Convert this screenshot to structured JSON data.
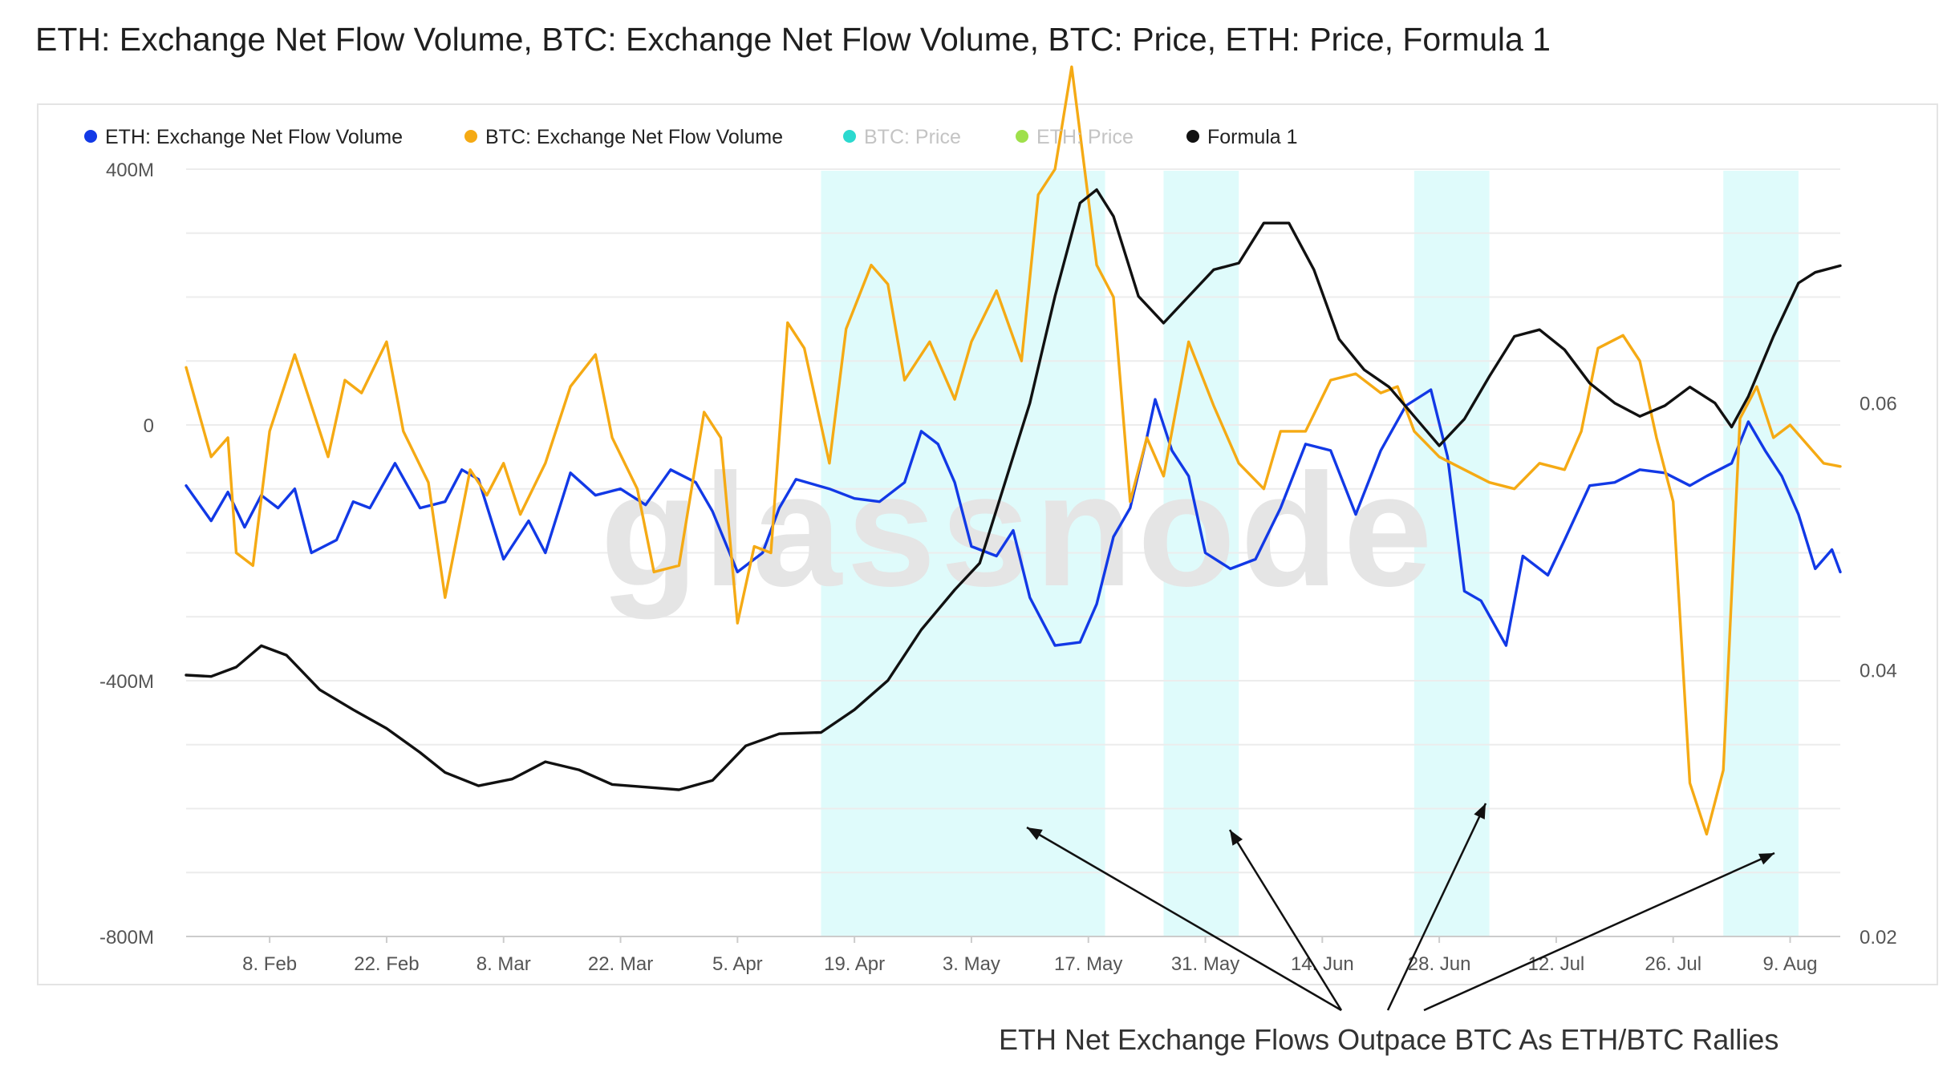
{
  "title": "ETH: Exchange Net Flow Volume, BTC: Exchange Net Flow Volume, BTC: Price, ETH: Price, Formula 1",
  "annotation": "ETH Net Exchange Flows Outpace BTC As ETH/BTC Rallies",
  "watermark": "glassnode",
  "chart_data": {
    "type": "line",
    "x_ticks": [
      "8. Feb",
      "22. Feb",
      "8. Mar",
      "22. Mar",
      "5. Apr",
      "19. Apr",
      "3. May",
      "17. May",
      "31. May",
      "14. Jun",
      "28. Jun",
      "12. Jul",
      "26. Jul",
      "9. Aug"
    ],
    "x_range": [
      "2021-01-29",
      "2021-08-15"
    ],
    "y_left": {
      "ticks": [
        "400M",
        "0",
        "-400M",
        "-800M"
      ],
      "range": [
        -800000000,
        420000000
      ]
    },
    "y_right": {
      "ticks": [
        "0.06",
        "0.04",
        "0.02"
      ],
      "range": [
        0.02,
        0.0785
      ]
    },
    "grid": true,
    "legend_position": "top-left",
    "legend": [
      {
        "label": "ETH: Exchange Net Flow Volume",
        "color": "#1239e6",
        "muted": false
      },
      {
        "label": "BTC: Exchange Net Flow Volume",
        "color": "#f5aa14",
        "muted": false
      },
      {
        "label": "BTC: Price",
        "color": "#2bd9cf",
        "muted": true
      },
      {
        "label": "ETH: Price",
        "color": "#9fe04b",
        "muted": true
      },
      {
        "label": "Formula 1",
        "color": "#111111",
        "muted": false
      }
    ],
    "highlight_bands": [
      {
        "from": "2021-04-15",
        "to": "2021-05-19"
      },
      {
        "from": "2021-05-26",
        "to": "2021-06-04"
      },
      {
        "from": "2021-06-25",
        "to": "2021-07-04"
      },
      {
        "from": "2021-08-01",
        "to": "2021-08-10"
      }
    ],
    "series": [
      {
        "name": "ETH: Exchange Net Flow Volume",
        "axis": "left",
        "color": "#1239e6",
        "points": [
          [
            "2021-01-29",
            -95000000
          ],
          [
            "2021-02-01",
            -150000000
          ],
          [
            "2021-02-03",
            -105000000
          ],
          [
            "2021-02-05",
            -160000000
          ],
          [
            "2021-02-07",
            -110000000
          ],
          [
            "2021-02-09",
            -130000000
          ],
          [
            "2021-02-11",
            -100000000
          ],
          [
            "2021-02-13",
            -200000000
          ],
          [
            "2021-02-16",
            -180000000
          ],
          [
            "2021-02-18",
            -120000000
          ],
          [
            "2021-02-20",
            -130000000
          ],
          [
            "2021-02-23",
            -60000000
          ],
          [
            "2021-02-26",
            -130000000
          ],
          [
            "2021-03-01",
            -120000000
          ],
          [
            "2021-03-03",
            -70000000
          ],
          [
            "2021-03-05",
            -85000000
          ],
          [
            "2021-03-08",
            -210000000
          ],
          [
            "2021-03-11",
            -150000000
          ],
          [
            "2021-03-13",
            -200000000
          ],
          [
            "2021-03-16",
            -75000000
          ],
          [
            "2021-03-19",
            -110000000
          ],
          [
            "2021-03-22",
            -100000000
          ],
          [
            "2021-03-25",
            -125000000
          ],
          [
            "2021-03-28",
            -70000000
          ],
          [
            "2021-03-31",
            -90000000
          ],
          [
            "2021-04-02",
            -135000000
          ],
          [
            "2021-04-05",
            -230000000
          ],
          [
            "2021-04-08",
            -200000000
          ],
          [
            "2021-04-10",
            -130000000
          ],
          [
            "2021-04-12",
            -85000000
          ],
          [
            "2021-04-16",
            -100000000
          ],
          [
            "2021-04-19",
            -115000000
          ],
          [
            "2021-04-22",
            -120000000
          ],
          [
            "2021-04-25",
            -90000000
          ],
          [
            "2021-04-27",
            -10000000
          ],
          [
            "2021-04-29",
            -30000000
          ],
          [
            "2021-05-01",
            -90000000
          ],
          [
            "2021-05-03",
            -190000000
          ],
          [
            "2021-05-06",
            -205000000
          ],
          [
            "2021-05-08",
            -165000000
          ],
          [
            "2021-05-10",
            -270000000
          ],
          [
            "2021-05-13",
            -345000000
          ],
          [
            "2021-05-16",
            -340000000
          ],
          [
            "2021-05-18",
            -280000000
          ],
          [
            "2021-05-20",
            -175000000
          ],
          [
            "2021-05-22",
            -130000000
          ],
          [
            "2021-05-24",
            -20000000
          ],
          [
            "2021-05-25",
            40000000
          ],
          [
            "2021-05-27",
            -40000000
          ],
          [
            "2021-05-29",
            -80000000
          ],
          [
            "2021-05-31",
            -200000000
          ],
          [
            "2021-06-03",
            -225000000
          ],
          [
            "2021-06-06",
            -210000000
          ],
          [
            "2021-06-09",
            -130000000
          ],
          [
            "2021-06-12",
            -30000000
          ],
          [
            "2021-06-15",
            -40000000
          ],
          [
            "2021-06-18",
            -140000000
          ],
          [
            "2021-06-21",
            -40000000
          ],
          [
            "2021-06-24",
            30000000
          ],
          [
            "2021-06-27",
            55000000
          ],
          [
            "2021-06-29",
            -50000000
          ],
          [
            "2021-07-01",
            -260000000
          ],
          [
            "2021-07-03",
            -275000000
          ],
          [
            "2021-07-06",
            -345000000
          ],
          [
            "2021-07-08",
            -205000000
          ],
          [
            "2021-07-11",
            -235000000
          ],
          [
            "2021-07-13",
            -180000000
          ],
          [
            "2021-07-16",
            -95000000
          ],
          [
            "2021-07-19",
            -90000000
          ],
          [
            "2021-07-22",
            -70000000
          ],
          [
            "2021-07-25",
            -75000000
          ],
          [
            "2021-07-28",
            -95000000
          ],
          [
            "2021-07-30",
            -80000000
          ],
          [
            "2021-08-02",
            -60000000
          ],
          [
            "2021-08-04",
            5000000
          ],
          [
            "2021-08-06",
            -40000000
          ],
          [
            "2021-08-08",
            -80000000
          ],
          [
            "2021-08-10",
            -140000000
          ],
          [
            "2021-08-12",
            -225000000
          ],
          [
            "2021-08-14",
            -195000000
          ],
          [
            "2021-08-15",
            -230000000
          ]
        ]
      },
      {
        "name": "BTC: Exchange Net Flow Volume",
        "axis": "left",
        "color": "#f5aa14",
        "points": [
          [
            "2021-01-29",
            90000000
          ],
          [
            "2021-02-01",
            -50000000
          ],
          [
            "2021-02-03",
            -20000000
          ],
          [
            "2021-02-04",
            -200000000
          ],
          [
            "2021-02-06",
            -220000000
          ],
          [
            "2021-02-08",
            -10000000
          ],
          [
            "2021-02-11",
            110000000
          ],
          [
            "2021-02-13",
            30000000
          ],
          [
            "2021-02-15",
            -50000000
          ],
          [
            "2021-02-17",
            70000000
          ],
          [
            "2021-02-19",
            50000000
          ],
          [
            "2021-02-22",
            130000000
          ],
          [
            "2021-02-24",
            -10000000
          ],
          [
            "2021-02-27",
            -90000000
          ],
          [
            "2021-03-01",
            -270000000
          ],
          [
            "2021-03-04",
            -70000000
          ],
          [
            "2021-03-06",
            -110000000
          ],
          [
            "2021-03-08",
            -60000000
          ],
          [
            "2021-03-10",
            -140000000
          ],
          [
            "2021-03-13",
            -60000000
          ],
          [
            "2021-03-16",
            60000000
          ],
          [
            "2021-03-19",
            110000000
          ],
          [
            "2021-03-21",
            -20000000
          ],
          [
            "2021-03-24",
            -100000000
          ],
          [
            "2021-03-26",
            -230000000
          ],
          [
            "2021-03-29",
            -220000000
          ],
          [
            "2021-04-01",
            20000000
          ],
          [
            "2021-04-03",
            -20000000
          ],
          [
            "2021-04-05",
            -310000000
          ],
          [
            "2021-04-07",
            -190000000
          ],
          [
            "2021-04-09",
            -200000000
          ],
          [
            "2021-04-11",
            160000000
          ],
          [
            "2021-04-13",
            120000000
          ],
          [
            "2021-04-16",
            -60000000
          ],
          [
            "2021-04-18",
            150000000
          ],
          [
            "2021-04-21",
            250000000
          ],
          [
            "2021-04-23",
            220000000
          ],
          [
            "2021-04-25",
            70000000
          ],
          [
            "2021-04-28",
            130000000
          ],
          [
            "2021-05-01",
            40000000
          ],
          [
            "2021-05-03",
            130000000
          ],
          [
            "2021-05-06",
            210000000
          ],
          [
            "2021-05-09",
            100000000
          ],
          [
            "2021-05-11",
            360000000
          ],
          [
            "2021-05-13",
            400000000
          ],
          [
            "2021-05-15",
            560000000
          ],
          [
            "2021-05-18",
            250000000
          ],
          [
            "2021-05-20",
            200000000
          ],
          [
            "2021-05-22",
            -120000000
          ],
          [
            "2021-05-24",
            -20000000
          ],
          [
            "2021-05-26",
            -80000000
          ],
          [
            "2021-05-29",
            130000000
          ],
          [
            "2021-06-01",
            30000000
          ],
          [
            "2021-06-04",
            -60000000
          ],
          [
            "2021-06-07",
            -100000000
          ],
          [
            "2021-06-09",
            -10000000
          ],
          [
            "2021-06-12",
            -10000000
          ],
          [
            "2021-06-15",
            70000000
          ],
          [
            "2021-06-18",
            80000000
          ],
          [
            "2021-06-21",
            50000000
          ],
          [
            "2021-06-23",
            60000000
          ],
          [
            "2021-06-25",
            -10000000
          ],
          [
            "2021-06-28",
            -50000000
          ],
          [
            "2021-07-01",
            -70000000
          ],
          [
            "2021-07-04",
            -90000000
          ],
          [
            "2021-07-07",
            -100000000
          ],
          [
            "2021-07-10",
            -60000000
          ],
          [
            "2021-07-13",
            -70000000
          ],
          [
            "2021-07-15",
            -10000000
          ],
          [
            "2021-07-17",
            120000000
          ],
          [
            "2021-07-20",
            140000000
          ],
          [
            "2021-07-22",
            100000000
          ],
          [
            "2021-07-24",
            -20000000
          ],
          [
            "2021-07-26",
            -120000000
          ],
          [
            "2021-07-28",
            -560000000
          ],
          [
            "2021-07-30",
            -640000000
          ],
          [
            "2021-08-01",
            -540000000
          ],
          [
            "2021-08-03",
            10000000
          ],
          [
            "2021-08-05",
            60000000
          ],
          [
            "2021-08-07",
            -20000000
          ],
          [
            "2021-08-09",
            0
          ],
          [
            "2021-08-11",
            -30000000
          ],
          [
            "2021-08-13",
            -60000000
          ],
          [
            "2021-08-15",
            -65000000
          ]
        ]
      },
      {
        "name": "Formula 1",
        "axis": "right",
        "color": "#111111",
        "points": [
          [
            "2021-01-29",
            0.0396
          ],
          [
            "2021-02-01",
            0.0395
          ],
          [
            "2021-02-04",
            0.0402
          ],
          [
            "2021-02-07",
            0.0418
          ],
          [
            "2021-02-10",
            0.0411
          ],
          [
            "2021-02-14",
            0.0385
          ],
          [
            "2021-02-18",
            0.037
          ],
          [
            "2021-02-22",
            0.0356
          ],
          [
            "2021-02-26",
            0.0338
          ],
          [
            "2021-03-01",
            0.0323
          ],
          [
            "2021-03-05",
            0.0313
          ],
          [
            "2021-03-09",
            0.0318
          ],
          [
            "2021-03-13",
            0.0331
          ],
          [
            "2021-03-17",
            0.0325
          ],
          [
            "2021-03-21",
            0.0314
          ],
          [
            "2021-03-25",
            0.0312
          ],
          [
            "2021-03-29",
            0.031
          ],
          [
            "2021-04-02",
            0.0317
          ],
          [
            "2021-04-06",
            0.0343
          ],
          [
            "2021-04-10",
            0.0352
          ],
          [
            "2021-04-15",
            0.0353
          ],
          [
            "2021-04-19",
            0.037
          ],
          [
            "2021-04-23",
            0.0392
          ],
          [
            "2021-04-27",
            0.043
          ],
          [
            "2021-05-01",
            0.046
          ],
          [
            "2021-05-04",
            0.048
          ],
          [
            "2021-05-07",
            0.054
          ],
          [
            "2021-05-10",
            0.06
          ],
          [
            "2021-05-13",
            0.068
          ],
          [
            "2021-05-16",
            0.075
          ],
          [
            "2021-05-18",
            0.076
          ],
          [
            "2021-05-20",
            0.074
          ],
          [
            "2021-05-23",
            0.068
          ],
          [
            "2021-05-26",
            0.066
          ],
          [
            "2021-05-29",
            0.068
          ],
          [
            "2021-06-01",
            0.07
          ],
          [
            "2021-06-04",
            0.0705
          ],
          [
            "2021-06-07",
            0.0735
          ],
          [
            "2021-06-10",
            0.0735
          ],
          [
            "2021-06-13",
            0.07
          ],
          [
            "2021-06-16",
            0.0648
          ],
          [
            "2021-06-19",
            0.0625
          ],
          [
            "2021-06-22",
            0.0612
          ],
          [
            "2021-06-25",
            0.059
          ],
          [
            "2021-06-28",
            0.0568
          ],
          [
            "2021-07-01",
            0.0588
          ],
          [
            "2021-07-04",
            0.062
          ],
          [
            "2021-07-07",
            0.065
          ],
          [
            "2021-07-10",
            0.0655
          ],
          [
            "2021-07-13",
            0.064
          ],
          [
            "2021-07-16",
            0.0615
          ],
          [
            "2021-07-19",
            0.06
          ],
          [
            "2021-07-22",
            0.059
          ],
          [
            "2021-07-25",
            0.0598
          ],
          [
            "2021-07-28",
            0.0612
          ],
          [
            "2021-07-31",
            0.06
          ],
          [
            "2021-08-02",
            0.0582
          ],
          [
            "2021-08-04",
            0.0605
          ],
          [
            "2021-08-07",
            0.065
          ],
          [
            "2021-08-10",
            0.069
          ],
          [
            "2021-08-12",
            0.0698
          ],
          [
            "2021-08-15",
            0.0703
          ]
        ]
      }
    ],
    "arrows": [
      {
        "from": [
          1672,
          1260
        ],
        "to": [
          1280,
          1032
        ]
      },
      {
        "from": [
          1672,
          1260
        ],
        "to": [
          1533,
          1035
        ]
      },
      {
        "from": [
          1730,
          1260
        ],
        "to": [
          1852,
          1002
        ]
      },
      {
        "from": [
          1775,
          1260
        ],
        "to": [
          2212,
          1064
        ]
      }
    ]
  }
}
